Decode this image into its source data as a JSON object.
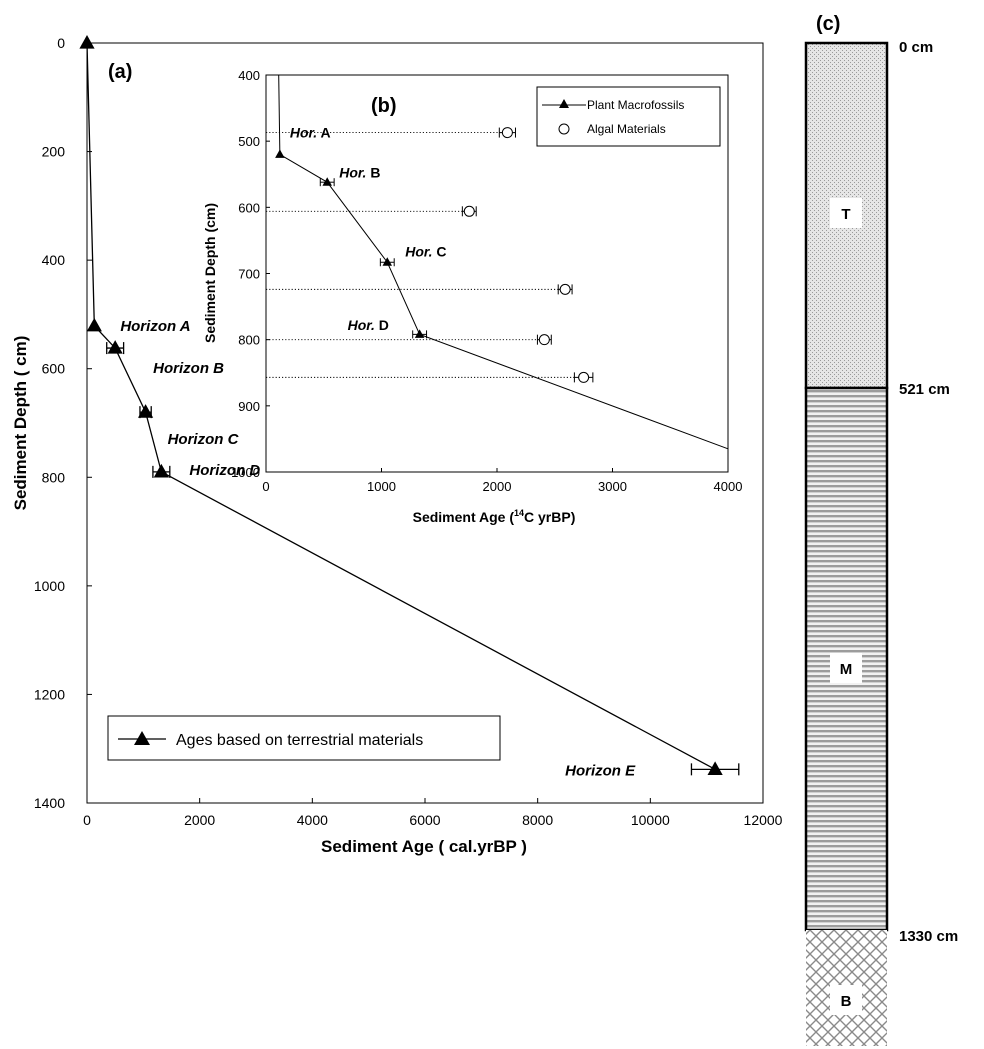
{
  "chart_data": [
    {
      "id": "a",
      "type": "line",
      "panel_label": "(a)",
      "xlabel": "Sediment Age ( cal.yrBP )",
      "ylabel": "Sediment Depth ( cm)",
      "xlim": [
        0,
        12000
      ],
      "ylim": [
        0,
        1400
      ],
      "y_inverted": true,
      "xticks": [
        0,
        2000,
        4000,
        6000,
        8000,
        10000,
        12000
      ],
      "yticks": [
        0,
        200,
        400,
        600,
        800,
        1000,
        1200,
        1400
      ],
      "grid": false,
      "legend_position": "bottom-left",
      "series": [
        {
          "name": "Ages based on terrestrial materials",
          "marker": "triangle",
          "points": [
            {
              "x": 0,
              "y": 0
            },
            {
              "x": 130,
              "y": 521
            },
            {
              "x": 500,
              "y": 562,
              "err": 150
            },
            {
              "x": 1040,
              "y": 680,
              "err": 100
            },
            {
              "x": 1320,
              "y": 790,
              "err": 150
            },
            {
              "x": 11150,
              "y": 1338,
              "err": 420
            }
          ]
        }
      ],
      "annotations": [
        {
          "text": "Horizon A",
          "x": 130,
          "y": 521
        },
        {
          "text": "Horizon B",
          "x": 500,
          "y": 562
        },
        {
          "text": "Horizon C",
          "x": 1040,
          "y": 680
        },
        {
          "text": "Horizon D",
          "x": 1320,
          "y": 790
        },
        {
          "text": "Horizon E",
          "x": 11150,
          "y": 1338
        }
      ]
    },
    {
      "id": "b",
      "type": "line",
      "panel_label": "(b)",
      "xlabel_parts": [
        "Sediment Age (",
        "14",
        "C yrBP)"
      ],
      "ylabel": "Sediment Depth (cm)",
      "xlim": [
        0,
        4000
      ],
      "ylim": [
        400,
        1000
      ],
      "y_inverted": true,
      "xticks": [
        0,
        1000,
        2000,
        3000,
        4000
      ],
      "yticks": [
        400,
        500,
        600,
        700,
        800,
        900,
        1000
      ],
      "grid": false,
      "legend_position": "top-right",
      "series": [
        {
          "name": "Plant Macrofossils",
          "marker": "triangle",
          "points": [
            {
              "x": 110,
              "y": 400
            },
            {
              "x": 120,
              "y": 520
            },
            {
              "x": 530,
              "y": 562,
              "err": 60
            },
            {
              "x": 1050,
              "y": 683,
              "err": 60
            },
            {
              "x": 1330,
              "y": 792,
              "err": 60
            },
            {
              "x": 4000,
              "y": 965
            }
          ]
        },
        {
          "name": "Algal Materials",
          "marker": "circle-open",
          "points": [
            {
              "x": 2090,
              "y": 487,
              "err": 70
            },
            {
              "x": 1760,
              "y": 606,
              "err": 60
            },
            {
              "x": 2590,
              "y": 724,
              "err": 60
            },
            {
              "x": 2410,
              "y": 800,
              "err": 60
            },
            {
              "x": 2750,
              "y": 857,
              "err": 80
            }
          ]
        }
      ],
      "dotted_lines_depths": [
        487,
        606,
        724,
        800,
        857
      ],
      "annotations": [
        {
          "prefix": "Hor.",
          "suffix": " A",
          "x": 120,
          "y": 487
        },
        {
          "prefix": "Hor.",
          "suffix": " B",
          "x": 530,
          "y": 547
        },
        {
          "prefix": "Hor.",
          "suffix": " C",
          "x": 1050,
          "y": 667
        },
        {
          "prefix": "Hor.",
          "suffix": " D",
          "x": 1330,
          "y": 778
        }
      ]
    },
    {
      "id": "c",
      "type": "stratigraphic-column",
      "panel_label": "(c)",
      "units": [
        {
          "label": "T",
          "top": 0,
          "bottom": 521,
          "pattern": "stipple"
        },
        {
          "label": "M",
          "top": 521,
          "bottom": 1330,
          "pattern": "horizontal-lines"
        },
        {
          "label": "B",
          "top": 1330,
          "bottom": null,
          "pattern": "crosshatch"
        }
      ],
      "depth_labels": [
        "0 cm",
        "521 cm",
        "1330 cm"
      ]
    }
  ]
}
